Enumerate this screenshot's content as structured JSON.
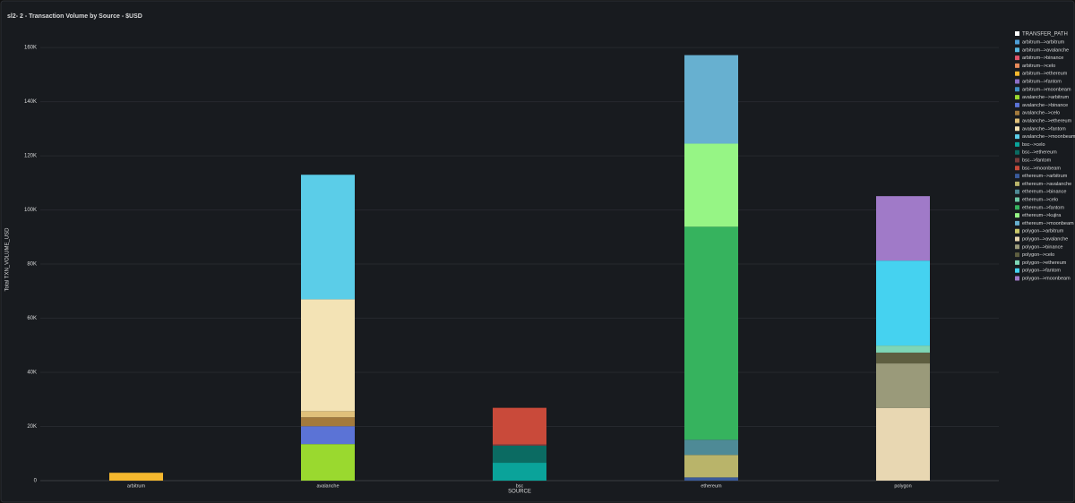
{
  "chart_data": {
    "type": "stacked_bar",
    "title": "sl2- 2 - Transaction Volume by Source - $USD",
    "x_label": "SOURCE",
    "y_label": "Total TXN_VOLUME_USD",
    "legend_title": "TRANSFER_PATH",
    "categories": [
      "arbitrum",
      "avalanche",
      "bsc",
      "ethereum",
      "polygon"
    ],
    "ylim": [
      0,
      165000
    ],
    "yticks": [
      0,
      {
        "value": 20000,
        "label": "20K"
      },
      {
        "value": 40000,
        "label": "40K"
      },
      {
        "value": 60000,
        "label": "60K"
      },
      {
        "value": 80000,
        "label": "80K"
      },
      {
        "value": 100000,
        "label": "100K"
      },
      {
        "value": 120000,
        "label": "120K"
      },
      {
        "value": 140000,
        "label": "140K"
      },
      {
        "value": 160000,
        "label": "160K"
      }
    ],
    "grid": true,
    "legend_position": "right",
    "series": [
      {
        "name": "arbitrum-->arbitrum",
        "color": "#4e9fd8",
        "values": [
          null,
          null,
          null,
          null,
          null
        ]
      },
      {
        "name": "arbitrum-->avalanche",
        "color": "#59b8e0",
        "values": [
          null,
          null,
          null,
          null,
          null
        ]
      },
      {
        "name": "arbitrum-->binance",
        "color": "#e0556b",
        "values": [
          null,
          null,
          null,
          null,
          null
        ]
      },
      {
        "name": "arbitrum-->celo",
        "color": "#e88a5a",
        "values": [
          null,
          null,
          null,
          null,
          null
        ]
      },
      {
        "name": "arbitrum-->ethereum",
        "color": "#f5b82e",
        "values": [
          2900,
          null,
          null,
          null,
          null
        ]
      },
      {
        "name": "arbitrum-->fantom",
        "color": "#8c6fc6",
        "values": [
          null,
          null,
          null,
          null,
          null
        ]
      },
      {
        "name": "arbitrum-->moonbeam",
        "color": "#3f8fc2",
        "values": [
          null,
          null,
          null,
          null,
          null
        ]
      },
      {
        "name": "avalanche-->arbitrum",
        "color": "#9ad92f",
        "values": [
          null,
          13500,
          null,
          null,
          null
        ]
      },
      {
        "name": "avalanche-->binance",
        "color": "#5b73d6",
        "values": [
          null,
          6600,
          null,
          null,
          null
        ]
      },
      {
        "name": "avalanche-->celo",
        "color": "#a37a3d",
        "values": [
          null,
          3300,
          null,
          null,
          null
        ]
      },
      {
        "name": "avalanche-->ethereum",
        "color": "#e0c07a",
        "values": [
          null,
          2300,
          null,
          null,
          null
        ]
      },
      {
        "name": "avalanche-->fantom",
        "color": "#f3e3b5",
        "values": [
          null,
          41300,
          null,
          null,
          null
        ]
      },
      {
        "name": "avalanche-->moonbeam",
        "color": "#5bcde8",
        "values": [
          null,
          46000,
          null,
          null,
          null
        ]
      },
      {
        "name": "bsc-->celo",
        "color": "#0aa39a",
        "values": [
          null,
          null,
          6600,
          null,
          null
        ]
      },
      {
        "name": "bsc-->ethereum",
        "color": "#0b6b62",
        "values": [
          null,
          null,
          6300,
          null,
          null
        ]
      },
      {
        "name": "bsc-->fantom",
        "color": "#7a3b3b",
        "values": [
          null,
          null,
          500,
          null,
          null
        ]
      },
      {
        "name": "bsc-->moonbeam",
        "color": "#c94a3a",
        "values": [
          null,
          null,
          13500,
          null,
          null
        ]
      },
      {
        "name": "ethereum-->arbitrum",
        "color": "#3a5a9a",
        "values": [
          null,
          null,
          null,
          1200,
          null
        ]
      },
      {
        "name": "ethereum-->avalanche",
        "color": "#b9b46a",
        "values": [
          null,
          null,
          null,
          8300,
          null
        ]
      },
      {
        "name": "ethereum-->binance",
        "color": "#4e8a96",
        "values": [
          null,
          null,
          null,
          5600,
          null
        ]
      },
      {
        "name": "ethereum-->celo",
        "color": "#6fc9a6",
        "values": [
          null,
          null,
          null,
          null,
          null
        ]
      },
      {
        "name": "ethereum-->fantom",
        "color": "#36b35e",
        "values": [
          null,
          null,
          null,
          78700,
          null
        ]
      },
      {
        "name": "ethereum-->kujira",
        "color": "#96f585",
        "values": [
          null,
          null,
          null,
          30700,
          null
        ]
      },
      {
        "name": "ethereum-->moonbeam",
        "color": "#67b0d0",
        "values": [
          null,
          null,
          null,
          32700,
          null
        ]
      },
      {
        "name": "polygon-->arbitrum",
        "color": "#c9c76a",
        "values": [
          null,
          null,
          null,
          null,
          null
        ]
      },
      {
        "name": "polygon-->avalanche",
        "color": "#e8d7b2",
        "values": [
          null,
          null,
          null,
          null,
          26800
        ]
      },
      {
        "name": "polygon-->binance",
        "color": "#9a9a7a",
        "values": [
          null,
          null,
          null,
          null,
          16500
        ]
      },
      {
        "name": "polygon-->celo",
        "color": "#5e5e40",
        "values": [
          null,
          null,
          null,
          null,
          4000
        ]
      },
      {
        "name": "polygon-->ethereum",
        "color": "#7ed6b6",
        "values": [
          null,
          null,
          null,
          null,
          2600
        ]
      },
      {
        "name": "polygon-->fantom",
        "color": "#45d2f0",
        "values": [
          null,
          null,
          null,
          null,
          31400
        ]
      },
      {
        "name": "polygon-->moonbeam",
        "color": "#a07ac8",
        "values": [
          null,
          null,
          null,
          null,
          23800
        ]
      }
    ]
  }
}
